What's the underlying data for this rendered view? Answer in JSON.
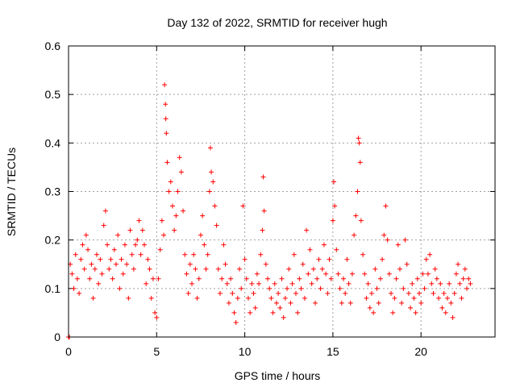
{
  "chart_data": {
    "type": "scatter",
    "title": "Day 132 of 2022, SRMTID for receiver hugh",
    "xlabel": "GPS time / hours",
    "ylabel": "SRMTID / TECUs",
    "xlim": [
      0,
      24.2
    ],
    "ylim": [
      0,
      0.6
    ],
    "grid": true,
    "marker": "+",
    "color": "#ff0000",
    "x_ticks": [
      0,
      5,
      10,
      15,
      20
    ],
    "x_tick_labels": [
      "0",
      "5",
      "10",
      "15",
      "20"
    ],
    "y_ticks": [
      0,
      0.1,
      0.2,
      0.3,
      0.4,
      0.5,
      0.6
    ],
    "y_tick_labels": [
      "0",
      "0.1",
      "0.2",
      "0.3",
      "0.4",
      "0.5",
      "0.6"
    ],
    "series": [
      {
        "name": "SRMTID",
        "points": [
          [
            0.0,
            0.0
          ],
          [
            0.05,
            0.0
          ],
          [
            0.1,
            0.15
          ],
          [
            0.2,
            0.13
          ],
          [
            0.3,
            0.1
          ],
          [
            0.4,
            0.17
          ],
          [
            0.5,
            0.12
          ],
          [
            0.6,
            0.09
          ],
          [
            0.7,
            0.16
          ],
          [
            0.8,
            0.19
          ],
          [
            0.9,
            0.14
          ],
          [
            1.0,
            0.21
          ],
          [
            1.1,
            0.18
          ],
          [
            1.2,
            0.12
          ],
          [
            1.3,
            0.15
          ],
          [
            1.4,
            0.08
          ],
          [
            1.5,
            0.14
          ],
          [
            1.6,
            0.17
          ],
          [
            1.7,
            0.11
          ],
          [
            1.8,
            0.16
          ],
          [
            1.9,
            0.13
          ],
          [
            2.0,
            0.23
          ],
          [
            2.1,
            0.26
          ],
          [
            2.2,
            0.19
          ],
          [
            2.3,
            0.14
          ],
          [
            2.4,
            0.16
          ],
          [
            2.5,
            0.12
          ],
          [
            2.6,
            0.18
          ],
          [
            2.7,
            0.15
          ],
          [
            2.8,
            0.21
          ],
          [
            2.9,
            0.1
          ],
          [
            3.0,
            0.16
          ],
          [
            3.1,
            0.13
          ],
          [
            3.2,
            0.19
          ],
          [
            3.3,
            0.15
          ],
          [
            3.4,
            0.08
          ],
          [
            3.5,
            0.22
          ],
          [
            3.6,
            0.17
          ],
          [
            3.7,
            0.14
          ],
          [
            3.8,
            0.19
          ],
          [
            3.9,
            0.2
          ],
          [
            4.0,
            0.24
          ],
          [
            4.1,
            0.17
          ],
          [
            4.2,
            0.22
          ],
          [
            4.3,
            0.19
          ],
          [
            4.4,
            0.11
          ],
          [
            4.5,
            0.16
          ],
          [
            4.6,
            0.14
          ],
          [
            4.7,
            0.08
          ],
          [
            4.8,
            0.12
          ],
          [
            4.9,
            0.05
          ],
          [
            5.0,
            0.04
          ],
          [
            5.1,
            0.12
          ],
          [
            5.2,
            0.18
          ],
          [
            5.3,
            0.24
          ],
          [
            5.4,
            0.21
          ],
          [
            5.45,
            0.52
          ],
          [
            5.5,
            0.48
          ],
          [
            5.52,
            0.45
          ],
          [
            5.55,
            0.42
          ],
          [
            5.6,
            0.36
          ],
          [
            5.7,
            0.3
          ],
          [
            5.8,
            0.32
          ],
          [
            5.9,
            0.27
          ],
          [
            6.0,
            0.22
          ],
          [
            6.1,
            0.25
          ],
          [
            6.2,
            0.3
          ],
          [
            6.3,
            0.37
          ],
          [
            6.4,
            0.34
          ],
          [
            6.5,
            0.26
          ],
          [
            6.6,
            0.17
          ],
          [
            6.7,
            0.13
          ],
          [
            6.8,
            0.09
          ],
          [
            6.9,
            0.15
          ],
          [
            7.0,
            0.11
          ],
          [
            7.1,
            0.17
          ],
          [
            7.2,
            0.14
          ],
          [
            7.3,
            0.08
          ],
          [
            7.4,
            0.12
          ],
          [
            7.5,
            0.21
          ],
          [
            7.6,
            0.25
          ],
          [
            7.7,
            0.19
          ],
          [
            7.8,
            0.14
          ],
          [
            7.9,
            0.17
          ],
          [
            8.0,
            0.3
          ],
          [
            8.05,
            0.39
          ],
          [
            8.1,
            0.34
          ],
          [
            8.2,
            0.32
          ],
          [
            8.3,
            0.27
          ],
          [
            8.4,
            0.23
          ],
          [
            8.5,
            0.14
          ],
          [
            8.6,
            0.09
          ],
          [
            8.7,
            0.12
          ],
          [
            8.8,
            0.19
          ],
          [
            8.9,
            0.15
          ],
          [
            9.0,
            0.11
          ],
          [
            9.1,
            0.07
          ],
          [
            9.2,
            0.12
          ],
          [
            9.3,
            0.09
          ],
          [
            9.4,
            0.05
          ],
          [
            9.5,
            0.03
          ],
          [
            9.6,
            0.08
          ],
          [
            9.7,
            0.14
          ],
          [
            9.8,
            0.1
          ],
          [
            9.9,
            0.27
          ],
          [
            10.0,
            0.16
          ],
          [
            10.1,
            0.12
          ],
          [
            10.2,
            0.08
          ],
          [
            10.3,
            0.05
          ],
          [
            10.4,
            0.11
          ],
          [
            10.5,
            0.09
          ],
          [
            10.6,
            0.06
          ],
          [
            10.7,
            0.13
          ],
          [
            10.8,
            0.11
          ],
          [
            10.9,
            0.17
          ],
          [
            11.0,
            0.22
          ],
          [
            11.05,
            0.33
          ],
          [
            11.1,
            0.26
          ],
          [
            11.2,
            0.15
          ],
          [
            11.3,
            0.12
          ],
          [
            11.4,
            0.1
          ],
          [
            11.5,
            0.08
          ],
          [
            11.6,
            0.05
          ],
          [
            11.7,
            0.11
          ],
          [
            11.8,
            0.07
          ],
          [
            11.9,
            0.09
          ],
          [
            12.0,
            0.06
          ],
          [
            12.1,
            0.12
          ],
          [
            12.2,
            0.04
          ],
          [
            12.3,
            0.08
          ],
          [
            12.4,
            0.1
          ],
          [
            12.5,
            0.14
          ],
          [
            12.6,
            0.07
          ],
          [
            12.7,
            0.11
          ],
          [
            12.8,
            0.17
          ],
          [
            12.9,
            0.09
          ],
          [
            13.0,
            0.05
          ],
          [
            13.1,
            0.12
          ],
          [
            13.2,
            0.1
          ],
          [
            13.3,
            0.15
          ],
          [
            13.4,
            0.08
          ],
          [
            13.5,
            0.22
          ],
          [
            13.6,
            0.13
          ],
          [
            13.7,
            0.18
          ],
          [
            13.8,
            0.11
          ],
          [
            13.9,
            0.14
          ],
          [
            14.0,
            0.07
          ],
          [
            14.1,
            0.12
          ],
          [
            14.2,
            0.16
          ],
          [
            14.3,
            0.1
          ],
          [
            14.4,
            0.14
          ],
          [
            14.5,
            0.19
          ],
          [
            14.6,
            0.13
          ],
          [
            14.7,
            0.09
          ],
          [
            14.8,
            0.16
          ],
          [
            14.9,
            0.12
          ],
          [
            15.0,
            0.24
          ],
          [
            15.05,
            0.32
          ],
          [
            15.1,
            0.27
          ],
          [
            15.2,
            0.18
          ],
          [
            15.3,
            0.13
          ],
          [
            15.4,
            0.1
          ],
          [
            15.5,
            0.07
          ],
          [
            15.6,
            0.12
          ],
          [
            15.7,
            0.09
          ],
          [
            15.8,
            0.16
          ],
          [
            15.9,
            0.11
          ],
          [
            16.0,
            0.07
          ],
          [
            16.1,
            0.13
          ],
          [
            16.2,
            0.21
          ],
          [
            16.3,
            0.25
          ],
          [
            16.4,
            0.3
          ],
          [
            16.45,
            0.41
          ],
          [
            16.5,
            0.4
          ],
          [
            16.55,
            0.36
          ],
          [
            16.6,
            0.24
          ],
          [
            16.7,
            0.17
          ],
          [
            16.8,
            0.13
          ],
          [
            16.9,
            0.08
          ],
          [
            17.0,
            0.11
          ],
          [
            17.1,
            0.06
          ],
          [
            17.2,
            0.09
          ],
          [
            17.3,
            0.05
          ],
          [
            17.4,
            0.14
          ],
          [
            17.5,
            0.1
          ],
          [
            17.6,
            0.07
          ],
          [
            17.7,
            0.12
          ],
          [
            17.8,
            0.16
          ],
          [
            17.9,
            0.21
          ],
          [
            18.0,
            0.27
          ],
          [
            18.1,
            0.2
          ],
          [
            18.2,
            0.13
          ],
          [
            18.3,
            0.09
          ],
          [
            18.4,
            0.05
          ],
          [
            18.5,
            0.08
          ],
          [
            18.6,
            0.12
          ],
          [
            18.7,
            0.19
          ],
          [
            18.8,
            0.14
          ],
          [
            18.9,
            0.07
          ],
          [
            19.0,
            0.1
          ],
          [
            19.1,
            0.2
          ],
          [
            19.2,
            0.15
          ],
          [
            19.3,
            0.09
          ],
          [
            19.4,
            0.06
          ],
          [
            19.5,
            0.11
          ],
          [
            19.6,
            0.08
          ],
          [
            19.7,
            0.05
          ],
          [
            19.8,
            0.12
          ],
          [
            19.9,
            0.09
          ],
          [
            20.0,
            0.07
          ],
          [
            20.1,
            0.13
          ],
          [
            20.2,
            0.1
          ],
          [
            20.3,
            0.16
          ],
          [
            20.4,
            0.13
          ],
          [
            20.5,
            0.17
          ],
          [
            20.6,
            0.11
          ],
          [
            20.7,
            0.09
          ],
          [
            20.8,
            0.14
          ],
          [
            20.9,
            0.12
          ],
          [
            21.0,
            0.08
          ],
          [
            21.1,
            0.11
          ],
          [
            21.2,
            0.06
          ],
          [
            21.3,
            0.09
          ],
          [
            21.4,
            0.05
          ],
          [
            21.5,
            0.08
          ],
          [
            21.6,
            0.11
          ],
          [
            21.7,
            0.07
          ],
          [
            21.8,
            0.04
          ],
          [
            21.9,
            0.09
          ],
          [
            22.0,
            0.13
          ],
          [
            22.1,
            0.15
          ],
          [
            22.2,
            0.11
          ],
          [
            22.3,
            0.08
          ],
          [
            22.4,
            0.12
          ],
          [
            22.5,
            0.14
          ],
          [
            22.6,
            0.1
          ],
          [
            22.7,
            0.12
          ],
          [
            22.8,
            0.11
          ]
        ]
      }
    ]
  }
}
